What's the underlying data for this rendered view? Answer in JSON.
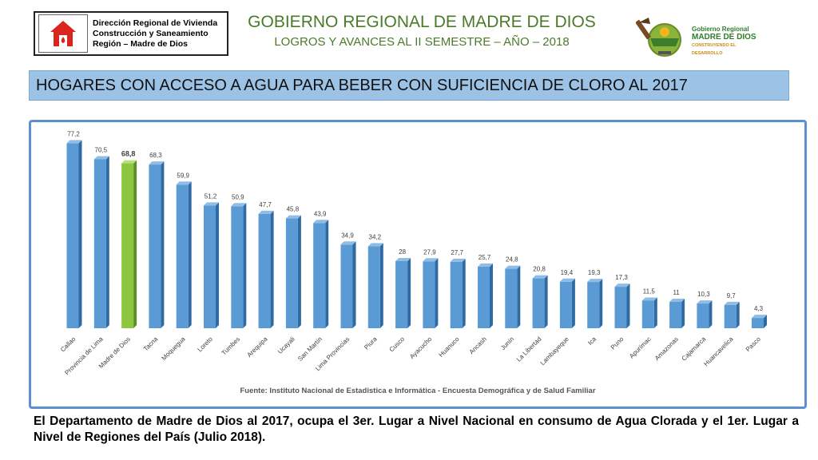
{
  "header": {
    "logo_left_lines": [
      "Dirección Regional de Vivienda",
      "Construcción y Saneamiento",
      "Región – Madre de Dios"
    ],
    "title": "GOBIERNO REGIONAL DE MADRE DE DIOS",
    "subtitle": "LOGROS Y AVANCES AL II SEMESTRE – AÑO – 2018",
    "logo_right_lines": [
      "Gobierno Regional",
      "MADRE DE DIOS",
      "CONSTRUYENDO EL DESARROLLO"
    ]
  },
  "banner": "HOGARES CON ACCESO A AGUA PARA BEBER CON SUFICIENCIA DE CLORO AL 2017",
  "colors": {
    "bar": "#5b9bd5",
    "bar_highlight": "#8dc63f",
    "title_green": "#4b7a2a",
    "frame": "#5b8fd0"
  },
  "chart_data": {
    "type": "bar",
    "categories": [
      "Callao",
      "Provincia de Lima",
      "Madre de Dios",
      "Tacna",
      "Moquegua",
      "Loreto",
      "Tumbes",
      "Arequipa",
      "Ucayali",
      "San Martín",
      "Lima Provincias",
      "Piura",
      "Cusco",
      "Ayacucho",
      "Huanuco",
      "Ancash",
      "Junín",
      "La Libertad",
      "Lambayeque",
      "Ica",
      "Puno",
      "Apurímac",
      "Amazonas",
      "Cajamarca",
      "Huancavelica",
      "Pasco"
    ],
    "values": [
      77.2,
      70.5,
      68.8,
      68.3,
      59.9,
      51.2,
      50.9,
      47.7,
      45.8,
      43.9,
      34.9,
      34.2,
      28,
      27.9,
      27.7,
      25.7,
      24.8,
      20.8,
      19.4,
      19.3,
      17.3,
      11.5,
      11,
      10.3,
      9.7,
      4.3
    ],
    "labels": [
      "77,2",
      "70,5",
      "68,8",
      "68,3",
      "59,9",
      "51,2",
      "50,9",
      "47,7",
      "45,8",
      "43,9",
      "34,9",
      "34,2",
      "28",
      "27,9",
      "27,7",
      "25,7",
      "24,8",
      "20,8",
      "19,4",
      "19,3",
      "17,3",
      "11,5",
      "11",
      "10,3",
      "9,7",
      "4,3"
    ],
    "highlight_index": 2,
    "ylim": [
      0,
      80
    ],
    "grid": false,
    "legend": "none",
    "source": "Fuente: Instituto Nacional de Estadistica e Informática - Encuesta Demográfica y de Salud Familiar"
  },
  "footer": "El Departamento de Madre de Dios al 2017, ocupa el 3er. Lugar a Nivel Nacional en consumo de  Agua Clorada y el 1er. Lugar a Nivel de Regiones del País (Julio 2018)."
}
